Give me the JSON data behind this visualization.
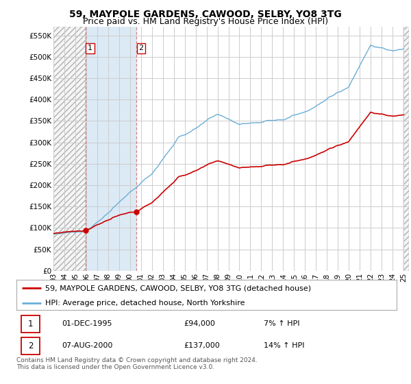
{
  "title": "59, MAYPOLE GARDENS, CAWOOD, SELBY, YO8 3TG",
  "subtitle": "Price paid vs. HM Land Registry's House Price Index (HPI)",
  "ylim": [
    0,
    570000
  ],
  "yticks": [
    0,
    50000,
    100000,
    150000,
    200000,
    250000,
    300000,
    350000,
    400000,
    450000,
    500000,
    550000
  ],
  "ytick_labels": [
    "£0",
    "£50K",
    "£100K",
    "£150K",
    "£200K",
    "£250K",
    "£300K",
    "£350K",
    "£400K",
    "£450K",
    "£500K",
    "£550K"
  ],
  "hpi_color": "#6baed6",
  "price_color": "#cc0000",
  "background_color": "#ffffff",
  "plot_bg_color": "#f5f5f5",
  "grid_color": "#cccccc",
  "hatch_color": "#cccccc",
  "sale_band_color": "#dceaf5",
  "dashed_line_color": "#cc6666",
  "legend_label_price": "59, MAYPOLE GARDENS, CAWOOD, SELBY, YO8 3TG (detached house)",
  "legend_label_hpi": "HPI: Average price, detached house, North Yorkshire",
  "sale1_date": "01-DEC-1995",
  "sale1_price": "£94,000",
  "sale1_hpi": "7% ↑ HPI",
  "sale1_x": 1995.917,
  "sale1_y": 94000,
  "sale2_date": "07-AUG-2000",
  "sale2_price": "£137,000",
  "sale2_hpi": "14% ↑ HPI",
  "sale2_x": 2000.583,
  "sale2_y": 137000,
  "footnote": "Contains HM Land Registry data © Crown copyright and database right 2024.\nThis data is licensed under the Open Government Licence v3.0.",
  "title_fontsize": 10,
  "subtitle_fontsize": 9,
  "tick_fontsize": 7.5,
  "legend_fontsize": 8,
  "table_fontsize": 8,
  "footnote_fontsize": 6.5,
  "xmin": 1993,
  "xmax": 2025.5
}
